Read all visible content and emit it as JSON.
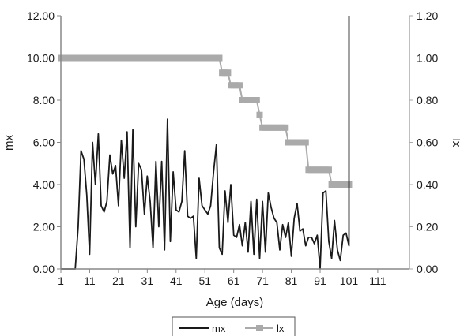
{
  "chart_data": {
    "type": "line",
    "title": "",
    "xlabel": "Age (days)",
    "ylabel_left": "mx",
    "ylabel_right": "lx",
    "xlim": [
      1,
      122
    ],
    "ylim_left": [
      0,
      12
    ],
    "ylim_right": [
      0,
      1.2
    ],
    "x_ticks": [
      "1",
      "11",
      "21",
      "31",
      "41",
      "51",
      "61",
      "71",
      "81",
      "91",
      "101",
      "111"
    ],
    "y_left_ticks": [
      "0.00",
      "2.00",
      "4.00",
      "6.00",
      "8.00",
      "10.00",
      "12.00"
    ],
    "y_right_ticks": [
      "0.00",
      "0.20",
      "0.40",
      "0.60",
      "0.80",
      "1.00",
      "1.20"
    ],
    "grid": false,
    "legend_position": "bottom-center",
    "series": [
      {
        "name": "mx",
        "axis": "left",
        "color": "#1a1a1a",
        "x": [
          1,
          2,
          3,
          4,
          5,
          6,
          7,
          8,
          9,
          10,
          11,
          12,
          13,
          14,
          15,
          16,
          17,
          18,
          19,
          20,
          21,
          22,
          23,
          24,
          25,
          26,
          27,
          28,
          29,
          30,
          31,
          32,
          33,
          34,
          35,
          36,
          37,
          38,
          39,
          40,
          41,
          42,
          43,
          44,
          45,
          46,
          47,
          48,
          49,
          50,
          51,
          52,
          53,
          54,
          55,
          56,
          57,
          58,
          59,
          60,
          61,
          62,
          63,
          64,
          65,
          66,
          67,
          68,
          69,
          70,
          71,
          72,
          73,
          74,
          75,
          76,
          77,
          78,
          79,
          80,
          81,
          82,
          83,
          84,
          85,
          86,
          87,
          88,
          89,
          90,
          91,
          92,
          93,
          94,
          95,
          96,
          97,
          98,
          99,
          100,
          101
        ],
        "values": [
          0,
          0,
          0,
          0,
          0,
          0,
          2,
          5.6,
          5.2,
          3.5,
          0.7,
          6,
          4,
          6.4,
          3,
          2.7,
          3.2,
          5.4,
          4.5,
          4.9,
          3,
          6.1,
          4.3,
          6.5,
          1,
          6.6,
          2,
          5,
          4.7,
          2.6,
          4.4,
          3.2,
          1,
          5.1,
          2,
          5.1,
          0.9,
          7.1,
          1.3,
          4.6,
          2.8,
          2.7,
          3.2,
          5.6,
          2.5,
          2.4,
          2.5,
          0.5,
          4.3,
          3,
          2.8,
          2.6,
          3,
          4.6,
          5.9,
          1,
          0.7,
          3.7,
          2.2,
          4,
          1.6,
          1.5,
          2.1,
          1.1,
          2.2,
          0.8,
          3.2,
          0.7,
          3.3,
          0.5,
          3.2,
          0.8,
          3.6,
          2.9,
          2.4,
          2.2,
          0.9,
          2.1,
          1.5,
          2.2,
          0.6,
          2.4,
          3.1,
          1.8,
          1.9,
          1.1,
          1.5,
          1.5,
          1.2,
          1.6,
          0,
          3.6,
          3.7,
          1.3,
          0.5,
          2.3,
          0.9,
          0.4,
          1.6,
          1.7,
          1.1
        ]
      },
      {
        "name": "lx",
        "axis": "right",
        "color": "#aaaaaa",
        "x": [
          1,
          56,
          57,
          58,
          59,
          60,
          61,
          62,
          63,
          64,
          65,
          66,
          67,
          68,
          69,
          70,
          71,
          72,
          73,
          74,
          75,
          76,
          77,
          78,
          79,
          80,
          81,
          82,
          83,
          84,
          85,
          86,
          87,
          88,
          89,
          90,
          91,
          92,
          93,
          94,
          95,
          96,
          97,
          98,
          99,
          100,
          101
        ],
        "values": [
          1,
          1,
          0.93,
          0.93,
          0.93,
          0.87,
          0.87,
          0.87,
          0.87,
          0.8,
          0.8,
          0.8,
          0.8,
          0.8,
          0.8,
          0.73,
          0.67,
          0.67,
          0.67,
          0.67,
          0.67,
          0.67,
          0.67,
          0.67,
          0.67,
          0.6,
          0.6,
          0.6,
          0.6,
          0.6,
          0.6,
          0.6,
          0.47,
          0.47,
          0.47,
          0.47,
          0.47,
          0.47,
          0.47,
          0.47,
          0.4,
          0.4,
          0.4,
          0.4,
          0.4,
          0.4,
          0.4
        ]
      }
    ],
    "annotations": [
      {
        "series": "mx",
        "x": 101,
        "y": 12
      }
    ]
  }
}
